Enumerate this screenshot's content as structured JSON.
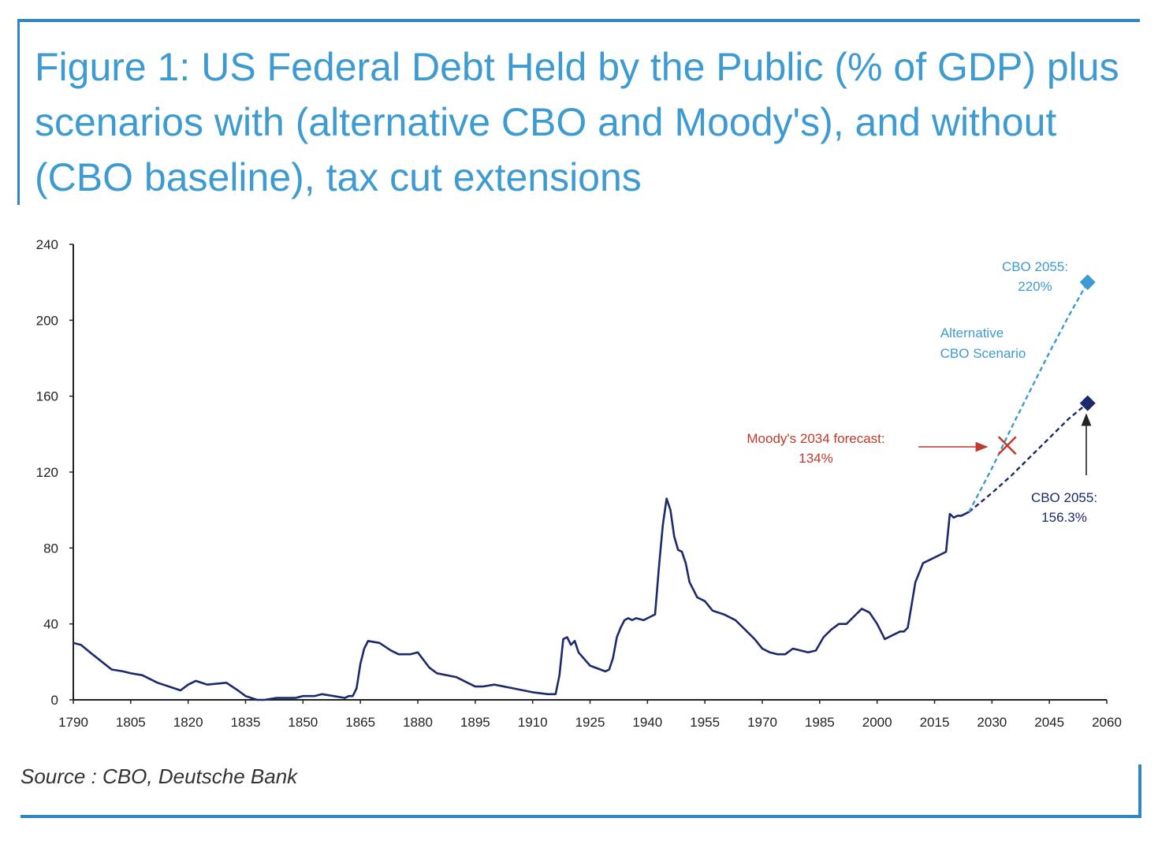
{
  "title": "Figure 1: US Federal Debt Held by the Public (% of GDP) plus scenarios with (alternative CBO and Moody's), and without (CBO baseline), tax cut extensions",
  "source": "Source : CBO, Deutsche Bank",
  "colors": {
    "history": "#1c2a6b",
    "baseline": "#1c2a6b",
    "alternative": "#3d9bd2",
    "moodys": "#c0392b",
    "title": "#3d9bd2",
    "frame": "#2f86c2"
  },
  "chart_data": {
    "type": "line",
    "xlim": [
      1790,
      2060
    ],
    "ylim": [
      0,
      240
    ],
    "xticks": [
      1790,
      1805,
      1820,
      1835,
      1850,
      1865,
      1880,
      1895,
      1910,
      1925,
      1940,
      1955,
      1970,
      1985,
      2000,
      2015,
      2030,
      2045,
      2060
    ],
    "yticks": [
      0,
      40,
      80,
      120,
      160,
      200,
      240
    ],
    "grid": false,
    "series": [
      {
        "key": "history",
        "style": "solid",
        "x": [
          1790,
          1792,
          1795,
          1800,
          1803,
          1805,
          1808,
          1812,
          1815,
          1818,
          1820,
          1822,
          1825,
          1830,
          1833,
          1835,
          1838,
          1840,
          1843,
          1845,
          1848,
          1850,
          1853,
          1855,
          1858,
          1861,
          1862,
          1863,
          1864,
          1865,
          1866,
          1867,
          1870,
          1873,
          1875,
          1878,
          1880,
          1883,
          1885,
          1890,
          1893,
          1895,
          1897,
          1900,
          1905,
          1910,
          1914,
          1915,
          1916,
          1917,
          1918,
          1919,
          1920,
          1921,
          1922,
          1925,
          1929,
          1930,
          1931,
          1932,
          1933,
          1934,
          1935,
          1936,
          1937,
          1939,
          1941,
          1942,
          1943,
          1944,
          1945,
          1946,
          1947,
          1948,
          1949,
          1950,
          1951,
          1952,
          1953,
          1955,
          1957,
          1960,
          1963,
          1965,
          1968,
          1970,
          1972,
          1974,
          1976,
          1978,
          1980,
          1982,
          1984,
          1986,
          1988,
          1990,
          1992,
          1994,
          1996,
          1998,
          2000,
          2002,
          2004,
          2006,
          2007,
          2008,
          2009,
          2010,
          2011,
          2012,
          2014,
          2016,
          2018,
          2019,
          2020,
          2021,
          2022,
          2024
        ],
        "y": [
          30,
          29,
          24,
          16,
          15,
          14,
          13,
          9,
          7,
          5,
          8,
          10,
          8,
          9,
          5,
          2,
          0,
          0,
          1,
          1,
          1,
          2,
          2,
          3,
          2,
          1,
          2,
          2,
          6,
          19,
          27,
          31,
          30,
          26,
          24,
          24,
          25,
          17,
          14,
          12,
          9,
          7,
          7,
          8,
          6,
          4,
          3,
          3,
          3,
          13,
          32,
          33,
          29,
          31,
          25,
          18,
          15,
          16,
          22,
          33,
          38,
          42,
          43,
          42,
          43,
          42,
          44,
          45,
          70,
          92,
          106,
          100,
          86,
          79,
          78,
          72,
          62,
          58,
          54,
          52,
          47,
          45,
          42,
          38,
          32,
          27,
          25,
          24,
          24,
          27,
          26,
          25,
          26,
          33,
          37,
          40,
          40,
          44,
          48,
          46,
          40,
          32,
          34,
          36,
          36,
          38,
          50,
          62,
          67,
          72,
          74,
          76,
          78,
          98,
          96,
          97,
          97,
          99
        ]
      },
      {
        "key": "cbo_baseline",
        "style": "dashed",
        "x": [
          2024,
          2030,
          2035,
          2040,
          2045,
          2050,
          2055
        ],
        "y": [
          99,
          109,
          118,
          128,
          138,
          148,
          156.3
        ]
      },
      {
        "key": "alternative",
        "name": "Alternative CBO Scenario",
        "style": "dashed",
        "x": [
          2024,
          2030,
          2035,
          2040,
          2045,
          2050,
          2055
        ],
        "y": [
          99,
          122,
          143,
          163,
          183,
          202,
          220
        ]
      }
    ],
    "markers": [
      {
        "key": "cbo_2055",
        "x": 2055,
        "y": 156.3,
        "shape": "diamond"
      },
      {
        "key": "alt_2055",
        "x": 2055,
        "y": 220,
        "shape": "diamond"
      },
      {
        "key": "moodys_2034",
        "x": 2034,
        "y": 134,
        "shape": "cross"
      }
    ],
    "annotations": {
      "alt_2055_line1": "CBO 2055:",
      "alt_2055_line2": "220%",
      "alt_label_line1": "Alternative",
      "alt_label_line2": "CBO Scenario",
      "moodys_line1": "Moody's 2034 forecast:",
      "moodys_line2": "134%",
      "cbo_2055_line1": "CBO 2055:",
      "cbo_2055_line2": "156.3%"
    }
  }
}
